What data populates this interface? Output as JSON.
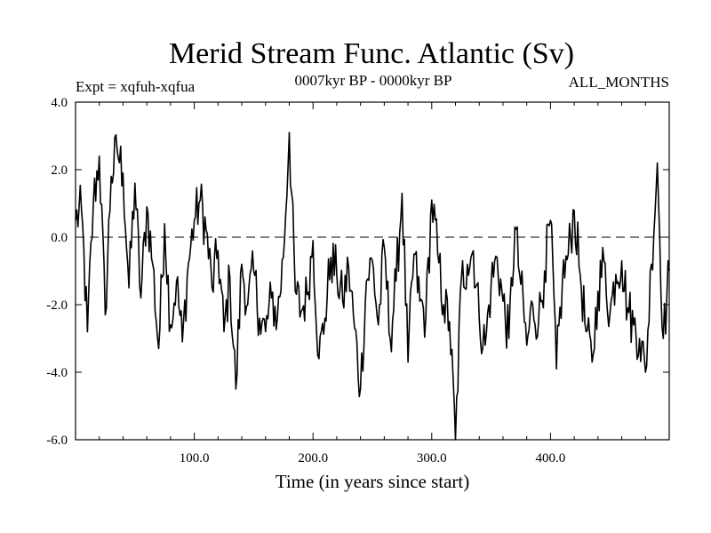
{
  "chart_data": {
    "type": "line",
    "title": "Merid Stream Func. Atlantic (Sv)",
    "subtitle_left": "Expt = xqfuh-xqfua",
    "subtitle_center": "0007kyr BP - 0000kyr BP",
    "subtitle_right": "ALL_MONTHS",
    "xlabel": "Time (in years since start)",
    "ylabel": "",
    "xlim": [
      0,
      500
    ],
    "ylim": [
      -6,
      4
    ],
    "xticks": [
      100,
      200,
      300,
      400
    ],
    "xtick_labels": [
      "100.0",
      "200.0",
      "300.0",
      "400.0"
    ],
    "yticks": [
      4,
      2,
      0,
      -2,
      -4,
      -6
    ],
    "ytick_labels": [
      "4.0",
      "2.0",
      "0.0",
      "-2.0",
      "-4.0",
      "-6.0"
    ],
    "zero_line": 0,
    "series": [
      {
        "name": "xqfuh-xqfua",
        "x": [
          0,
          5,
          10,
          15,
          20,
          25,
          30,
          35,
          40,
          45,
          50,
          55,
          60,
          65,
          70,
          75,
          80,
          85,
          90,
          95,
          100,
          105,
          110,
          115,
          120,
          125,
          130,
          135,
          140,
          145,
          150,
          155,
          160,
          165,
          170,
          175,
          180,
          185,
          190,
          195,
          200,
          205,
          210,
          215,
          220,
          225,
          230,
          235,
          240,
          245,
          250,
          255,
          260,
          265,
          270,
          275,
          280,
          285,
          290,
          295,
          300,
          305,
          310,
          315,
          320,
          325,
          330,
          335,
          340,
          345,
          350,
          355,
          360,
          365,
          370,
          375,
          380,
          385,
          390,
          395,
          400,
          405,
          410,
          415,
          420,
          425,
          430,
          435,
          440,
          445,
          450,
          455,
          460,
          465,
          470,
          475,
          480,
          485,
          490,
          495,
          500
        ],
        "values": [
          0.5,
          0.8,
          -2.8,
          1.0,
          2.4,
          -2.3,
          1.8,
          2.6,
          1.9,
          -1.5,
          1.6,
          -1.8,
          0.9,
          -0.8,
          -3.3,
          0.4,
          -2.6,
          -1.3,
          -3.1,
          -0.8,
          0.5,
          1.1,
          0.2,
          -1.5,
          -0.4,
          -2.8,
          -1.2,
          -4.5,
          -0.8,
          -2.0,
          -1.0,
          -2.4,
          -2.8,
          -1.8,
          -2.4,
          -0.6,
          3.1,
          -1.6,
          -2.2,
          -1.7,
          -0.1,
          -3.6,
          -2.4,
          -0.6,
          -1.1,
          -1.9,
          -0.9,
          -2.7,
          -4.5,
          -1.3,
          -0.7,
          -2.6,
          -0.3,
          -3.0,
          -1.3,
          1.3,
          -3.7,
          -0.5,
          -1.9,
          -2.4,
          1.1,
          -0.5,
          -2.0,
          -2.5,
          -6.0,
          -1.2,
          -0.8,
          -0.4,
          -2.4,
          -3.2,
          -1.4,
          -0.6,
          -1.9,
          -3.0,
          0.3,
          -1.4,
          -3.2,
          -2.0,
          -2.5,
          -1.0,
          0.5,
          -3.9,
          -1.3,
          -0.5,
          0.8,
          -1.1,
          -2.8,
          -3.7,
          -1.6,
          -0.7,
          -2.3,
          -1.1,
          -0.7,
          -2.1,
          -2.6,
          -3.0,
          -4.0,
          -0.8,
          2.2,
          -3.0,
          -1.0
        ]
      }
    ]
  }
}
